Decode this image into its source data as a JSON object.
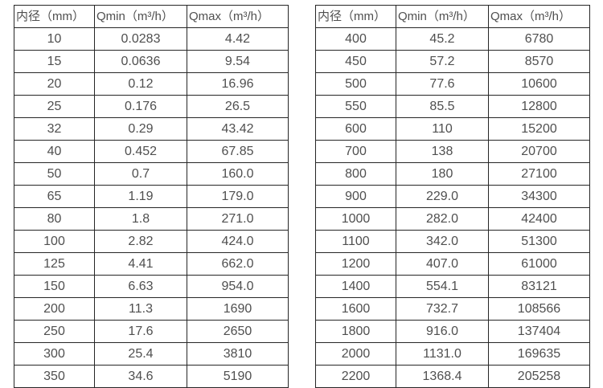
{
  "left_table": {
    "headers": [
      "内径（mm）",
      "Qmin（m³/h）",
      "Qmax（m³/h）"
    ],
    "rows": [
      [
        "10",
        "0.0283",
        "4.42"
      ],
      [
        "15",
        "0.0636",
        "9.54"
      ],
      [
        "20",
        "0.12",
        "16.96"
      ],
      [
        "25",
        "0.176",
        "26.5"
      ],
      [
        "32",
        "0.29",
        "43.42"
      ],
      [
        "40",
        "0.452",
        "67.85"
      ],
      [
        "50",
        "0.7",
        "160.0"
      ],
      [
        "65",
        "1.19",
        "179.0"
      ],
      [
        "80",
        "1.8",
        "271.0"
      ],
      [
        "100",
        "2.82",
        "424.0"
      ],
      [
        "125",
        "4.41",
        "662.0"
      ],
      [
        "150",
        "6.63",
        "954.0"
      ],
      [
        "200",
        "11.3",
        "1690"
      ],
      [
        "250",
        "17.6",
        "2650"
      ],
      [
        "300",
        "25.4",
        "3810"
      ],
      [
        "350",
        "34.6",
        "5190"
      ]
    ]
  },
  "right_table": {
    "headers": [
      "内径（mm）",
      "Qmin（m³/h）",
      "Qmax（m³/h）"
    ],
    "rows": [
      [
        "400",
        "45.2",
        "6780"
      ],
      [
        "450",
        "57.2",
        "8570"
      ],
      [
        "500",
        "77.6",
        "10600"
      ],
      [
        "550",
        "85.5",
        "12800"
      ],
      [
        "600",
        "110",
        "15200"
      ],
      [
        "700",
        "138",
        "20700"
      ],
      [
        "800",
        "180",
        "27100"
      ],
      [
        "900",
        "229.0",
        "34300"
      ],
      [
        "1000",
        "282.0",
        "42400"
      ],
      [
        "1100",
        "342.0",
        "51300"
      ],
      [
        "1200",
        "407.0",
        "61000"
      ],
      [
        "1400",
        "554.1",
        "83121"
      ],
      [
        "1600",
        "732.7",
        "108566"
      ],
      [
        "1800",
        "916.0",
        "137404"
      ],
      [
        "2000",
        "1131.0",
        "169635"
      ],
      [
        "2200",
        "1368.4",
        "205258"
      ]
    ]
  },
  "colors": {
    "text": "#4f4f4f",
    "border": "#262626",
    "background": "#ffffff"
  }
}
